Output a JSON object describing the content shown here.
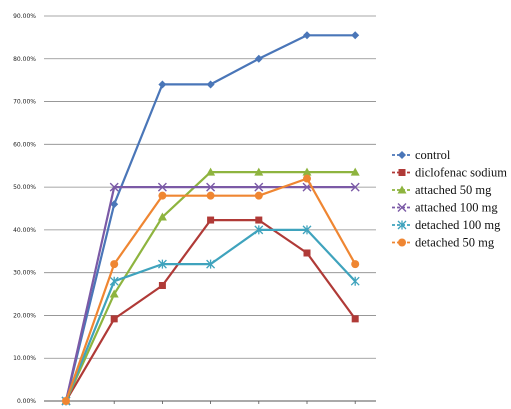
{
  "chart_data": {
    "type": "line",
    "title": "",
    "xlabel": "",
    "ylabel": "",
    "ylim": [
      0,
      90
    ],
    "y_ticks": [
      "0.00%",
      "10.00%",
      "20.00%",
      "30.00%",
      "40.00%",
      "50.00%",
      "60.00%",
      "70.00%",
      "80.00%",
      "90.00%"
    ],
    "x": [
      0,
      1,
      2,
      3,
      4,
      5,
      6
    ],
    "grid": true,
    "legend_position": "right",
    "series": [
      {
        "name": "control",
        "color": "#4a76b8",
        "marker": "diamond",
        "values": [
          0,
          46,
          74,
          74,
          80,
          85.5,
          85.5
        ]
      },
      {
        "name": "diclofenac sodium",
        "color": "#b03a37",
        "marker": "square",
        "values": [
          0,
          19.2,
          27,
          42.3,
          42.3,
          34.6,
          19.2
        ]
      },
      {
        "name": "attached 50 mg",
        "color": "#8eb43f",
        "marker": "triangle",
        "values": [
          0,
          25,
          43,
          53.5,
          53.5,
          53.5,
          53.5
        ]
      },
      {
        "name": "attached 100 mg",
        "color": "#7b5aa6",
        "marker": "x",
        "values": [
          0,
          50,
          50,
          50,
          50,
          50,
          50
        ]
      },
      {
        "name": "detached 100 mg",
        "color": "#3fa3bd",
        "marker": "star",
        "values": [
          0,
          28,
          32,
          32,
          40,
          40,
          28
        ]
      },
      {
        "name": "detached 50 mg",
        "color": "#ef8632",
        "marker": "circle",
        "values": [
          0,
          32,
          48,
          48,
          48,
          52,
          32
        ]
      }
    ]
  }
}
